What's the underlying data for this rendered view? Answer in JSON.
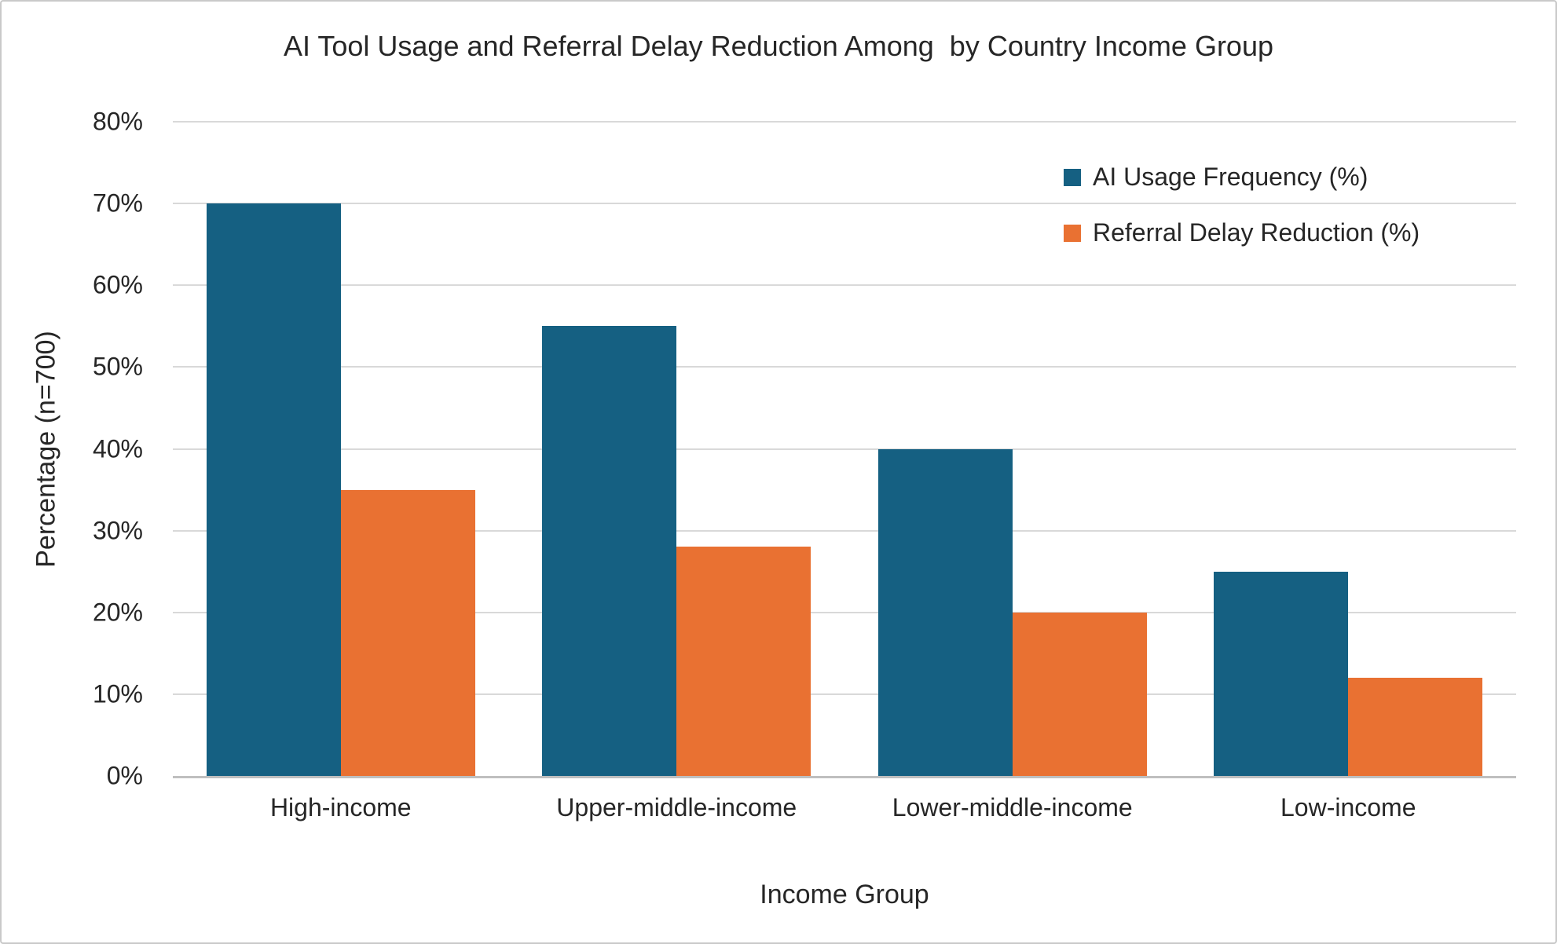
{
  "chart_data": {
    "type": "bar",
    "title": "AI Tool Usage and Referral Delay Reduction Among  by Country Income Group",
    "categories": [
      "High-income",
      "Upper-middle-income",
      "Lower-middle-income",
      "Low-income"
    ],
    "series": [
      {
        "name": "AI Usage Frequency (%)",
        "color": "#156082",
        "values": [
          70,
          55,
          40,
          25
        ]
      },
      {
        "name": "Referral Delay Reduction (%)",
        "color": "#E97132",
        "values": [
          35,
          28,
          20,
          12
        ]
      }
    ],
    "xlabel": "Income Group",
    "ylabel": "Percentage (n=700)",
    "ylim": [
      0,
      80
    ],
    "ytick_step": 10,
    "ytick_labels": [
      "0%",
      "10%",
      "20%",
      "30%",
      "40%",
      "50%",
      "60%",
      "70%",
      "80%"
    ],
    "grid": "horizontal",
    "legend_position": "top-right"
  },
  "style": {
    "gridline_color": "#d9d9d9",
    "axis_line_color": "#bfbfbf",
    "text_color": "#262626",
    "background": "#ffffff"
  }
}
